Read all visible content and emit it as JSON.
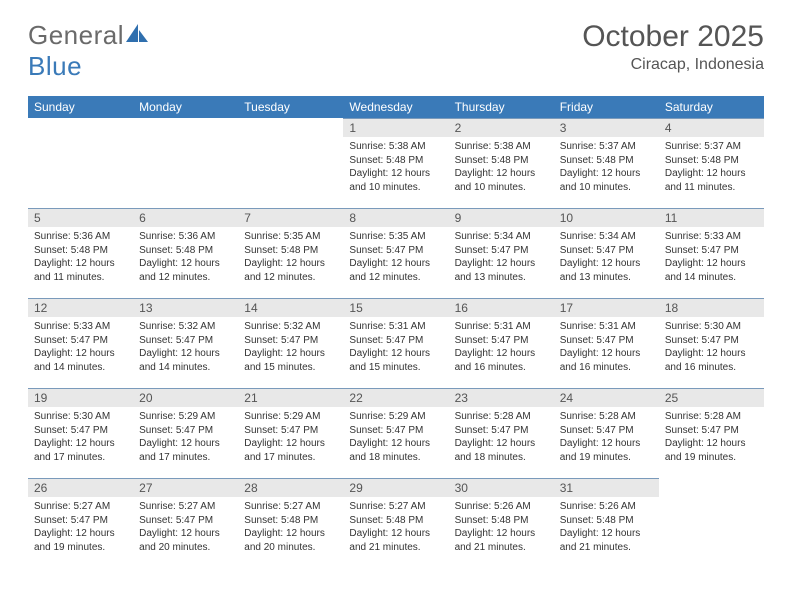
{
  "brand": {
    "name_gray": "General",
    "name_blue": "Blue"
  },
  "title": "October 2025",
  "location": "Ciracap, Indonesia",
  "colors": {
    "header_bg": "#3a7ab8",
    "daynum_bg": "#e8e8e8",
    "rule": "#7a9abb"
  },
  "weekdays": [
    "Sunday",
    "Monday",
    "Tuesday",
    "Wednesday",
    "Thursday",
    "Friday",
    "Saturday"
  ],
  "weeks": [
    [
      {
        "n": "",
        "sunrise": "",
        "sunset": "",
        "daylight": ""
      },
      {
        "n": "",
        "sunrise": "",
        "sunset": "",
        "daylight": ""
      },
      {
        "n": "",
        "sunrise": "",
        "sunset": "",
        "daylight": ""
      },
      {
        "n": "1",
        "sunrise": "Sunrise: 5:38 AM",
        "sunset": "Sunset: 5:48 PM",
        "daylight": "Daylight: 12 hours and 10 minutes."
      },
      {
        "n": "2",
        "sunrise": "Sunrise: 5:38 AM",
        "sunset": "Sunset: 5:48 PM",
        "daylight": "Daylight: 12 hours and 10 minutes."
      },
      {
        "n": "3",
        "sunrise": "Sunrise: 5:37 AM",
        "sunset": "Sunset: 5:48 PM",
        "daylight": "Daylight: 12 hours and 10 minutes."
      },
      {
        "n": "4",
        "sunrise": "Sunrise: 5:37 AM",
        "sunset": "Sunset: 5:48 PM",
        "daylight": "Daylight: 12 hours and 11 minutes."
      }
    ],
    [
      {
        "n": "5",
        "sunrise": "Sunrise: 5:36 AM",
        "sunset": "Sunset: 5:48 PM",
        "daylight": "Daylight: 12 hours and 11 minutes."
      },
      {
        "n": "6",
        "sunrise": "Sunrise: 5:36 AM",
        "sunset": "Sunset: 5:48 PM",
        "daylight": "Daylight: 12 hours and 12 minutes."
      },
      {
        "n": "7",
        "sunrise": "Sunrise: 5:35 AM",
        "sunset": "Sunset: 5:48 PM",
        "daylight": "Daylight: 12 hours and 12 minutes."
      },
      {
        "n": "8",
        "sunrise": "Sunrise: 5:35 AM",
        "sunset": "Sunset: 5:47 PM",
        "daylight": "Daylight: 12 hours and 12 minutes."
      },
      {
        "n": "9",
        "sunrise": "Sunrise: 5:34 AM",
        "sunset": "Sunset: 5:47 PM",
        "daylight": "Daylight: 12 hours and 13 minutes."
      },
      {
        "n": "10",
        "sunrise": "Sunrise: 5:34 AM",
        "sunset": "Sunset: 5:47 PM",
        "daylight": "Daylight: 12 hours and 13 minutes."
      },
      {
        "n": "11",
        "sunrise": "Sunrise: 5:33 AM",
        "sunset": "Sunset: 5:47 PM",
        "daylight": "Daylight: 12 hours and 14 minutes."
      }
    ],
    [
      {
        "n": "12",
        "sunrise": "Sunrise: 5:33 AM",
        "sunset": "Sunset: 5:47 PM",
        "daylight": "Daylight: 12 hours and 14 minutes."
      },
      {
        "n": "13",
        "sunrise": "Sunrise: 5:32 AM",
        "sunset": "Sunset: 5:47 PM",
        "daylight": "Daylight: 12 hours and 14 minutes."
      },
      {
        "n": "14",
        "sunrise": "Sunrise: 5:32 AM",
        "sunset": "Sunset: 5:47 PM",
        "daylight": "Daylight: 12 hours and 15 minutes."
      },
      {
        "n": "15",
        "sunrise": "Sunrise: 5:31 AM",
        "sunset": "Sunset: 5:47 PM",
        "daylight": "Daylight: 12 hours and 15 minutes."
      },
      {
        "n": "16",
        "sunrise": "Sunrise: 5:31 AM",
        "sunset": "Sunset: 5:47 PM",
        "daylight": "Daylight: 12 hours and 16 minutes."
      },
      {
        "n": "17",
        "sunrise": "Sunrise: 5:31 AM",
        "sunset": "Sunset: 5:47 PM",
        "daylight": "Daylight: 12 hours and 16 minutes."
      },
      {
        "n": "18",
        "sunrise": "Sunrise: 5:30 AM",
        "sunset": "Sunset: 5:47 PM",
        "daylight": "Daylight: 12 hours and 16 minutes."
      }
    ],
    [
      {
        "n": "19",
        "sunrise": "Sunrise: 5:30 AM",
        "sunset": "Sunset: 5:47 PM",
        "daylight": "Daylight: 12 hours and 17 minutes."
      },
      {
        "n": "20",
        "sunrise": "Sunrise: 5:29 AM",
        "sunset": "Sunset: 5:47 PM",
        "daylight": "Daylight: 12 hours and 17 minutes."
      },
      {
        "n": "21",
        "sunrise": "Sunrise: 5:29 AM",
        "sunset": "Sunset: 5:47 PM",
        "daylight": "Daylight: 12 hours and 17 minutes."
      },
      {
        "n": "22",
        "sunrise": "Sunrise: 5:29 AM",
        "sunset": "Sunset: 5:47 PM",
        "daylight": "Daylight: 12 hours and 18 minutes."
      },
      {
        "n": "23",
        "sunrise": "Sunrise: 5:28 AM",
        "sunset": "Sunset: 5:47 PM",
        "daylight": "Daylight: 12 hours and 18 minutes."
      },
      {
        "n": "24",
        "sunrise": "Sunrise: 5:28 AM",
        "sunset": "Sunset: 5:47 PM",
        "daylight": "Daylight: 12 hours and 19 minutes."
      },
      {
        "n": "25",
        "sunrise": "Sunrise: 5:28 AM",
        "sunset": "Sunset: 5:47 PM",
        "daylight": "Daylight: 12 hours and 19 minutes."
      }
    ],
    [
      {
        "n": "26",
        "sunrise": "Sunrise: 5:27 AM",
        "sunset": "Sunset: 5:47 PM",
        "daylight": "Daylight: 12 hours and 19 minutes."
      },
      {
        "n": "27",
        "sunrise": "Sunrise: 5:27 AM",
        "sunset": "Sunset: 5:47 PM",
        "daylight": "Daylight: 12 hours and 20 minutes."
      },
      {
        "n": "28",
        "sunrise": "Sunrise: 5:27 AM",
        "sunset": "Sunset: 5:48 PM",
        "daylight": "Daylight: 12 hours and 20 minutes."
      },
      {
        "n": "29",
        "sunrise": "Sunrise: 5:27 AM",
        "sunset": "Sunset: 5:48 PM",
        "daylight": "Daylight: 12 hours and 21 minutes."
      },
      {
        "n": "30",
        "sunrise": "Sunrise: 5:26 AM",
        "sunset": "Sunset: 5:48 PM",
        "daylight": "Daylight: 12 hours and 21 minutes."
      },
      {
        "n": "31",
        "sunrise": "Sunrise: 5:26 AM",
        "sunset": "Sunset: 5:48 PM",
        "daylight": "Daylight: 12 hours and 21 minutes."
      },
      {
        "n": "",
        "sunrise": "",
        "sunset": "",
        "daylight": ""
      }
    ]
  ]
}
